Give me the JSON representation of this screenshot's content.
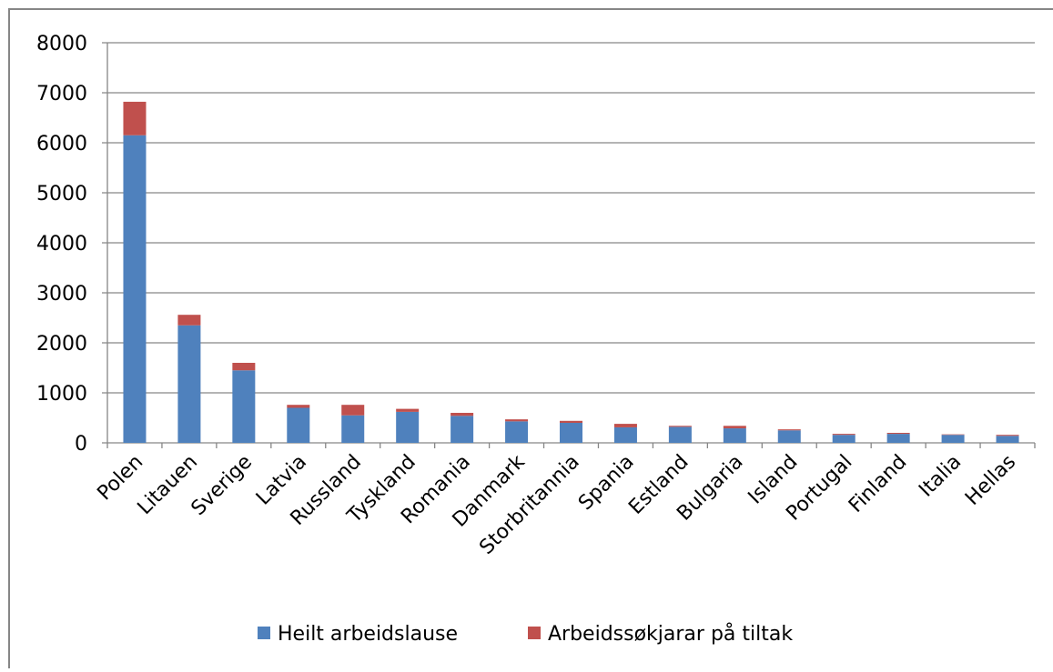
{
  "chart_data": {
    "type": "stacked-bar",
    "categories": [
      "Polen",
      "Litauen",
      "Sverige",
      "Latvia",
      "Russland",
      "Tyskland",
      "Romania",
      "Danmark",
      "Storbritannia",
      "Spania",
      "Estland",
      "Bulgaria",
      "Island",
      "Portugal",
      "Finland",
      "Italia",
      "Hellas"
    ],
    "series": [
      {
        "name": "Heilt arbeidslause",
        "color": "#4f81bd",
        "values": [
          6150,
          2350,
          1450,
          700,
          550,
          620,
          540,
          430,
          400,
          310,
          320,
          290,
          250,
          160,
          180,
          160,
          140
        ]
      },
      {
        "name": "Arbeidssøkjarar på tiltak",
        "color": "#c0504d",
        "values": [
          670,
          210,
          150,
          60,
          210,
          60,
          60,
          40,
          40,
          70,
          20,
          50,
          20,
          20,
          20,
          10,
          20
        ]
      }
    ],
    "ylim": [
      0,
      8000
    ],
    "yticks": [
      0,
      1000,
      2000,
      3000,
      4000,
      5000,
      6000,
      7000,
      8000
    ],
    "grid": true,
    "legend": "bottom"
  }
}
